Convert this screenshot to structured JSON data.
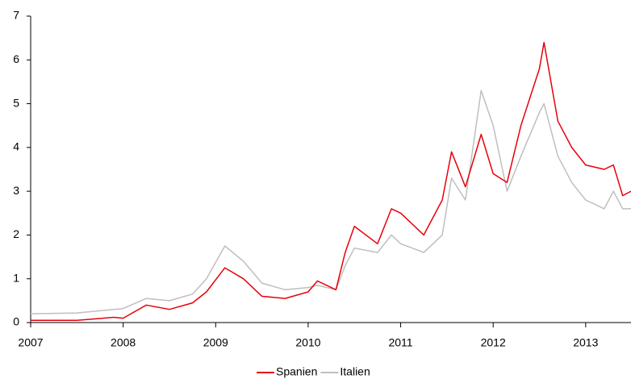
{
  "chart_data": {
    "type": "line",
    "x": [
      2007.0,
      2007.5,
      2007.9,
      2008.0,
      2008.25,
      2008.5,
      2008.75,
      2008.9,
      2009.1,
      2009.3,
      2009.5,
      2009.75,
      2010.0,
      2010.1,
      2010.3,
      2010.4,
      2010.5,
      2010.75,
      2010.9,
      2011.0,
      2011.25,
      2011.45,
      2011.55,
      2011.7,
      2011.87,
      2012.0,
      2012.15,
      2012.3,
      2012.5,
      2012.55,
      2012.7,
      2012.85,
      2013.0,
      2013.2,
      2013.3,
      2013.4,
      2013.49
    ],
    "series": [
      {
        "name": "Spanien",
        "color": "#e8000b",
        "values": [
          0.05,
          0.05,
          0.12,
          0.1,
          0.4,
          0.3,
          0.45,
          0.7,
          1.25,
          1.0,
          0.6,
          0.55,
          0.7,
          0.95,
          0.75,
          1.6,
          2.2,
          1.8,
          2.6,
          2.5,
          2.0,
          2.8,
          3.9,
          3.1,
          4.3,
          3.4,
          3.2,
          4.5,
          5.8,
          6.4,
          4.6,
          4.0,
          3.6,
          3.5,
          3.6,
          2.9,
          3.0
        ]
      },
      {
        "name": "Italien",
        "color": "#bfbfbf",
        "values": [
          0.2,
          0.22,
          0.3,
          0.32,
          0.55,
          0.5,
          0.65,
          1.0,
          1.75,
          1.4,
          0.9,
          0.75,
          0.8,
          0.85,
          0.75,
          1.3,
          1.7,
          1.6,
          2.0,
          1.8,
          1.6,
          2.0,
          3.3,
          2.8,
          5.3,
          4.5,
          3.0,
          3.8,
          4.8,
          5.0,
          3.8,
          3.2,
          2.8,
          2.6,
          3.0,
          2.6,
          2.6
        ]
      }
    ],
    "xlim": [
      2007,
      2013.49
    ],
    "xticks": [
      2007,
      2008,
      2009,
      2010,
      2011,
      2012,
      2013
    ],
    "ylim": [
      0,
      7
    ],
    "yticks": [
      0,
      1,
      2,
      3,
      4,
      5,
      6,
      7
    ],
    "legend": "bottom"
  }
}
